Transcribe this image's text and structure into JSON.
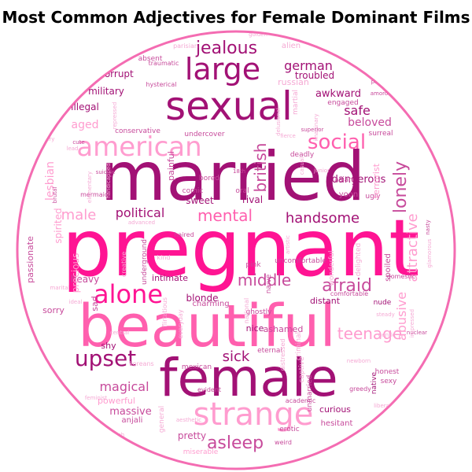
{
  "title": "Most Common Adjectives for Female Dominant Films",
  "colors": {
    "ring": "#f46cb2",
    "hot": "#ff1493",
    "plum": "#a21175",
    "pink": "#ff5fae",
    "light": "#ff9ccf",
    "mauve": "#c74a9b",
    "pale": "#f5a9d4",
    "rose": "#e9508f"
  },
  "words": [
    {
      "text": "pregnant",
      "color": "hot"
    },
    {
      "text": "married",
      "color": "plum"
    },
    {
      "text": "beautiful",
      "color": "pink"
    },
    {
      "text": "female",
      "color": "plum"
    },
    {
      "text": "sexual",
      "color": "plum"
    },
    {
      "text": "strange",
      "color": "light"
    },
    {
      "text": "american",
      "color": "light"
    },
    {
      "text": "alone",
      "color": "hot"
    },
    {
      "text": "large",
      "color": "plum"
    },
    {
      "text": "social",
      "color": "pink"
    },
    {
      "text": "upset",
      "color": "plum"
    },
    {
      "text": "jealous",
      "color": "plum"
    },
    {
      "text": "afraid",
      "color": "mauve"
    },
    {
      "text": "asleep",
      "color": "mauve"
    },
    {
      "text": "mental",
      "color": "pink"
    },
    {
      "text": "teenage",
      "color": "light"
    },
    {
      "text": "middle",
      "color": "mauve"
    },
    {
      "text": "handsome",
      "color": "plum"
    },
    {
      "text": "lonely",
      "color": "mauve"
    },
    {
      "text": "british",
      "color": "mauve"
    },
    {
      "text": "sick",
      "color": "plum"
    },
    {
      "text": "magical",
      "color": "mauve"
    },
    {
      "text": "political",
      "color": "plum"
    },
    {
      "text": "german",
      "color": "plum"
    },
    {
      "text": "safe",
      "color": "plum"
    },
    {
      "text": "aged",
      "color": "light"
    },
    {
      "text": "male",
      "color": "light"
    },
    {
      "text": "attractive",
      "color": "light"
    },
    {
      "text": "beloved",
      "color": "mauve"
    },
    {
      "text": "dangerous",
      "color": "plum"
    },
    {
      "text": "lesbian",
      "color": "light"
    },
    {
      "text": "massive",
      "color": "mauve"
    },
    {
      "text": "pretty",
      "color": "mauve"
    },
    {
      "text": "curious",
      "color": "plum"
    },
    {
      "text": "abusive",
      "color": "light"
    },
    {
      "text": "blonde",
      "color": "plum"
    },
    {
      "text": "heavy",
      "color": "mauve"
    },
    {
      "text": "russian",
      "color": "pale"
    },
    {
      "text": "awkward",
      "color": "plum"
    },
    {
      "text": "troubled",
      "color": "plum"
    },
    {
      "text": "illegal",
      "color": "plum"
    },
    {
      "text": "military",
      "color": "plum"
    },
    {
      "text": "corrupt",
      "color": "plum"
    },
    {
      "text": "spirited",
      "color": "light"
    },
    {
      "text": "precious",
      "color": "light"
    },
    {
      "text": "sweet",
      "color": "plum"
    },
    {
      "text": "rival",
      "color": "plum"
    },
    {
      "text": "intimate",
      "color": "plum"
    },
    {
      "text": "sorry",
      "color": "mauve"
    },
    {
      "text": "nice",
      "color": "plum"
    },
    {
      "text": "ashamed",
      "color": "mauve"
    },
    {
      "text": "shy",
      "color": "plum"
    },
    {
      "text": "powerful",
      "color": "light"
    },
    {
      "text": "passionate",
      "color": "mauve"
    },
    {
      "text": "sad",
      "color": "mauve"
    },
    {
      "text": "painful",
      "color": "mauve"
    },
    {
      "text": "distant",
      "color": "plum"
    },
    {
      "text": "uncomfortable",
      "color": "mauve"
    },
    {
      "text": "ghostly",
      "color": "mauve"
    },
    {
      "text": "eternal",
      "color": "mauve"
    },
    {
      "text": "mexican",
      "color": "mauve"
    },
    {
      "text": "charming",
      "color": "mauve"
    },
    {
      "text": "naive",
      "color": "mauve"
    },
    {
      "text": "anjali",
      "color": "mauve"
    },
    {
      "text": "hesitant",
      "color": "mauve"
    },
    {
      "text": "erotic",
      "color": "mauve"
    },
    {
      "text": "weird",
      "color": "mauve"
    },
    {
      "text": "miserable",
      "color": "light"
    },
    {
      "text": "honest",
      "color": "mauve"
    },
    {
      "text": "native",
      "color": "plum"
    },
    {
      "text": "sexy",
      "color": "mauve"
    },
    {
      "text": "greedy",
      "color": "mauve"
    },
    {
      "text": "nude",
      "color": "plum"
    },
    {
      "text": "comfortable",
      "color": "mauve"
    },
    {
      "text": "domestic",
      "color": "mauve"
    },
    {
      "text": "ugly",
      "color": "mauve"
    },
    {
      "text": "spoiled",
      "color": "mauve"
    },
    {
      "text": "surreal",
      "color": "mauve"
    },
    {
      "text": "terrorist",
      "color": "light"
    },
    {
      "text": "yoon",
      "color": "mauve"
    },
    {
      "text": "asian",
      "color": "mauve"
    },
    {
      "text": "deadly",
      "color": "mauve"
    },
    {
      "text": "comic",
      "color": "mauve"
    },
    {
      "text": "bored",
      "color": "mauve"
    },
    {
      "text": "oral",
      "color": "mauve"
    },
    {
      "text": "undercover",
      "color": "mauve"
    },
    {
      "text": "conservative",
      "color": "mauve"
    },
    {
      "text": "hysterical",
      "color": "mauve"
    },
    {
      "text": "engaged",
      "color": "mauve"
    },
    {
      "text": "martial",
      "color": "pale"
    },
    {
      "text": "alien",
      "color": "pale"
    },
    {
      "text": "absent",
      "color": "mauve"
    },
    {
      "text": "traumatic",
      "color": "mauve"
    },
    {
      "text": "parisian",
      "color": "pale"
    },
    {
      "text": "golden",
      "color": "pale"
    },
    {
      "text": "fateful",
      "color": "mauve"
    },
    {
      "text": "prime",
      "color": "mauve"
    },
    {
      "text": "amorous",
      "color": "mauve"
    },
    {
      "text": "repressed",
      "color": "pale"
    },
    {
      "text": "cute",
      "color": "mauve"
    },
    {
      "text": "scary",
      "color": "pale"
    },
    {
      "text": "lead",
      "color": "pale"
    },
    {
      "text": "junior",
      "color": "pale"
    },
    {
      "text": "nasty",
      "color": "mauve"
    },
    {
      "text": "nuclear",
      "color": "mauve"
    },
    {
      "text": "gentle",
      "color": "pale"
    },
    {
      "text": "steady",
      "color": "pale"
    },
    {
      "text": "unmarried",
      "color": "mauve"
    },
    {
      "text": "captive",
      "color": "pale"
    },
    {
      "text": "criminal",
      "color": "pale"
    },
    {
      "text": "academic",
      "color": "mauve"
    },
    {
      "text": "evident",
      "color": "mauve"
    },
    {
      "text": "general",
      "color": "pale"
    },
    {
      "text": "lavish",
      "color": "pale"
    },
    {
      "text": "koreans",
      "color": "pale"
    },
    {
      "text": "flirtatious",
      "color": "pale"
    },
    {
      "text": "everyday",
      "color": "pale"
    },
    {
      "text": "national",
      "color": "pale"
    },
    {
      "text": "distressed",
      "color": "pale"
    },
    {
      "text": "delighted",
      "color": "pale"
    },
    {
      "text": "wonderful",
      "color": "pale"
    },
    {
      "text": "artistic",
      "color": "pale"
    },
    {
      "text": "pink",
      "color": "mauve"
    },
    {
      "text": "kind",
      "color": "pale"
    },
    {
      "text": "creative",
      "color": "pale"
    },
    {
      "text": "underground",
      "color": "mauve"
    },
    {
      "text": "advanced",
      "color": "pale"
    },
    {
      "text": "haired",
      "color": "mauve"
    },
    {
      "text": "marital",
      "color": "pale"
    },
    {
      "text": "ideal",
      "color": "pale"
    },
    {
      "text": "historical",
      "color": "pale"
    },
    {
      "text": "central",
      "color": "pale"
    },
    {
      "text": "mermaid",
      "color": "mauve"
    },
    {
      "text": "elementary",
      "color": "pale"
    },
    {
      "text": "handicapped",
      "color": "pale"
    },
    {
      "text": "suicide",
      "color": "mauve"
    },
    {
      "text": "brutal",
      "color": "mauve"
    },
    {
      "text": "casual",
      "color": "pale"
    },
    {
      "text": "newborn",
      "color": "pale"
    },
    {
      "text": "liberal",
      "color": "pale"
    },
    {
      "text": "impressed",
      "color": "pale"
    },
    {
      "text": "glamorous",
      "color": "pale"
    },
    {
      "text": "fierce",
      "color": "pale"
    },
    {
      "text": "imaginary",
      "color": "pale"
    },
    {
      "text": "delusional",
      "color": "pale"
    },
    {
      "text": "feminist",
      "color": "pale"
    },
    {
      "text": "aesthetic",
      "color": "pale"
    },
    {
      "text": "18th",
      "color": "mauve"
    },
    {
      "text": "superior",
      "color": "mauve"
    }
  ]
}
